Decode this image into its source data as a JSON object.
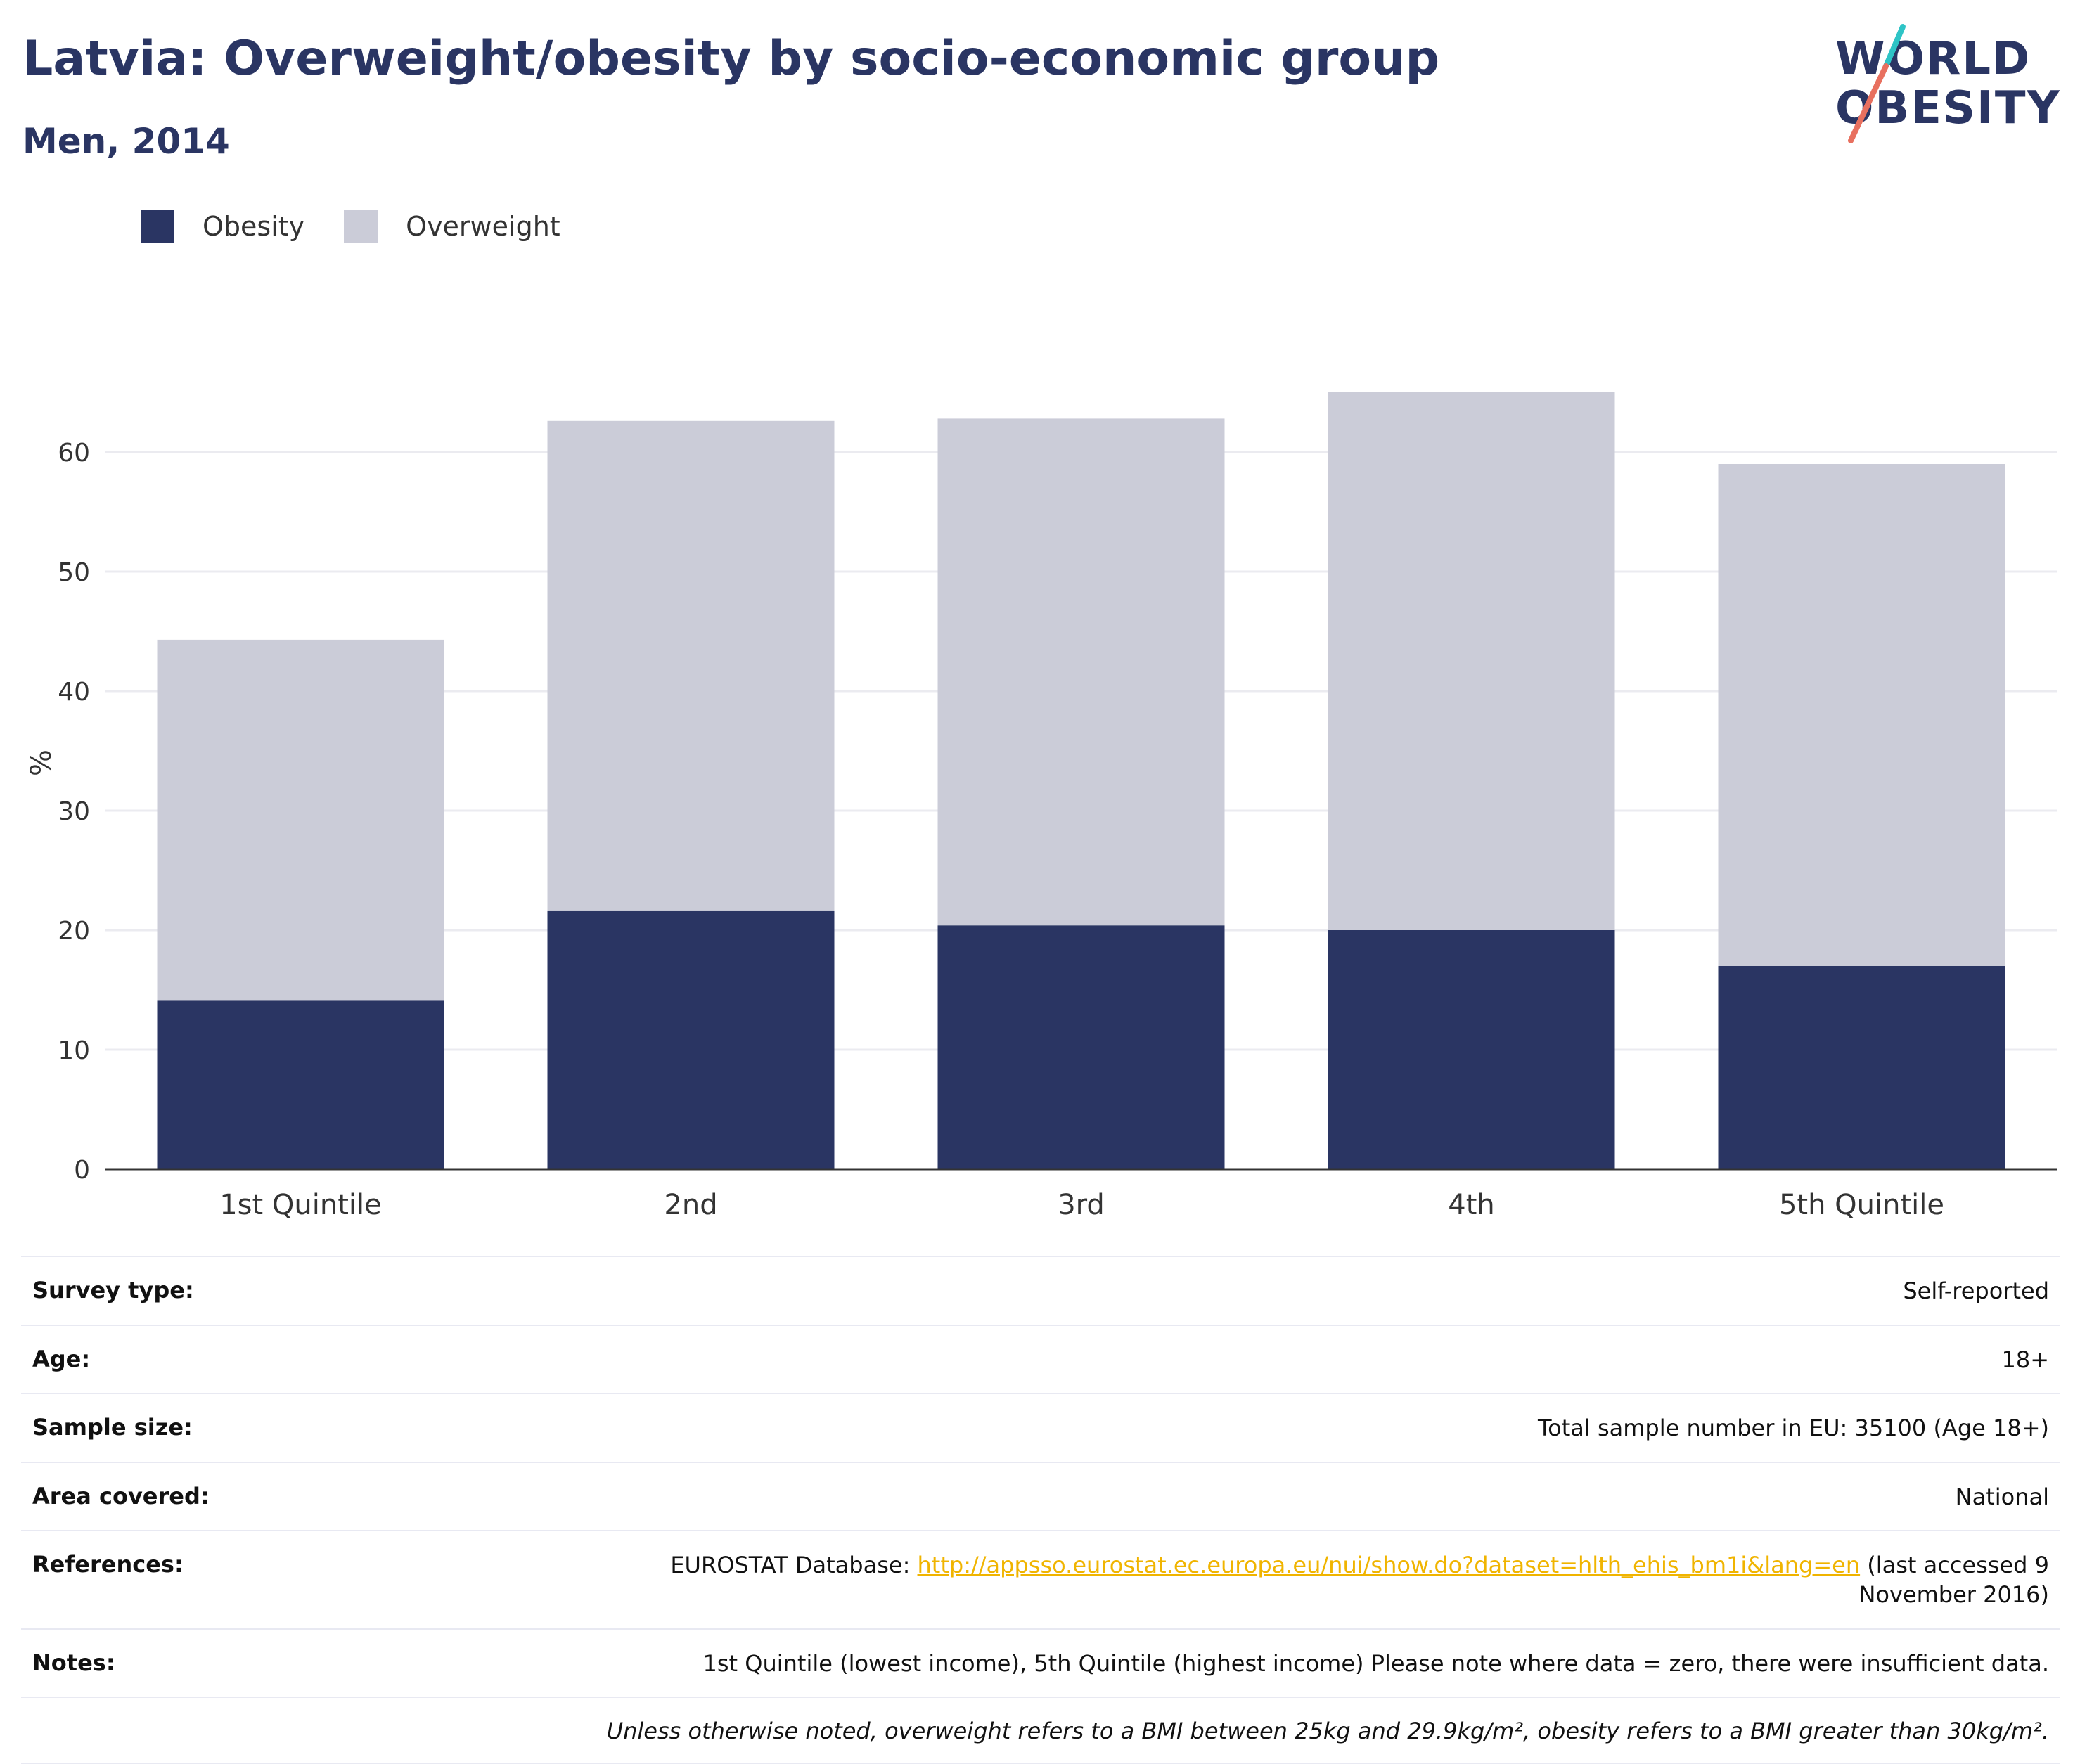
{
  "header": {
    "title": "Latvia: Overweight/obesity by socio-economic group",
    "subtitle": "Men, 2014"
  },
  "logo": {
    "line1": "WORLD",
    "line2": "OBESITY",
    "accent_colors": [
      "#2ec4c6",
      "#e8705f"
    ]
  },
  "legend": [
    {
      "label": "Obesity",
      "color": "#2a3563"
    },
    {
      "label": "Overweight",
      "color": "#cbccd8"
    }
  ],
  "chart_data": {
    "type": "bar",
    "stacked": true,
    "categories": [
      "1st Quintile",
      "2nd",
      "3rd",
      "4th",
      "5th Quintile"
    ],
    "series": [
      {
        "name": "Obesity",
        "color": "#2a3563",
        "values": [
          14.1,
          21.6,
          20.4,
          20.0,
          17.0
        ]
      },
      {
        "name": "Overweight",
        "color": "#cbccd8",
        "values": [
          30.2,
          41.0,
          42.4,
          45.0,
          42.0
        ]
      }
    ],
    "ylabel": "%",
    "ylim": [
      0,
      70
    ],
    "yticks": [
      0,
      10,
      20,
      30,
      40,
      50,
      60
    ],
    "grid": true,
    "legend_position": "top-left"
  },
  "info": {
    "survey_type": {
      "key": "Survey type:",
      "value": "Self-reported"
    },
    "age": {
      "key": "Age:",
      "value": "18+"
    },
    "sample_size": {
      "key": "Sample size:",
      "value": "Total sample number in EU: 35100 (Age 18+)"
    },
    "area": {
      "key": "Area covered:",
      "value": "National"
    },
    "references": {
      "key": "References:",
      "prefix": "EUROSTAT Database: ",
      "link": "http://appsso.eurostat.ec.europa.eu/nui/show.do?dataset=hlth_ehis_bm1i&lang=en",
      "suffix": " (last accessed 9 November 2016)"
    },
    "notes": {
      "key": "Notes:",
      "value": "1st Quintile (lowest income), 5th Quintile (highest income) Please note where data = zero, there were insufficient data."
    },
    "footnote": "Unless otherwise noted, overweight refers to a BMI between 25kg and 29.9kg/m², obesity refers to a BMI greater than 30kg/m²."
  }
}
